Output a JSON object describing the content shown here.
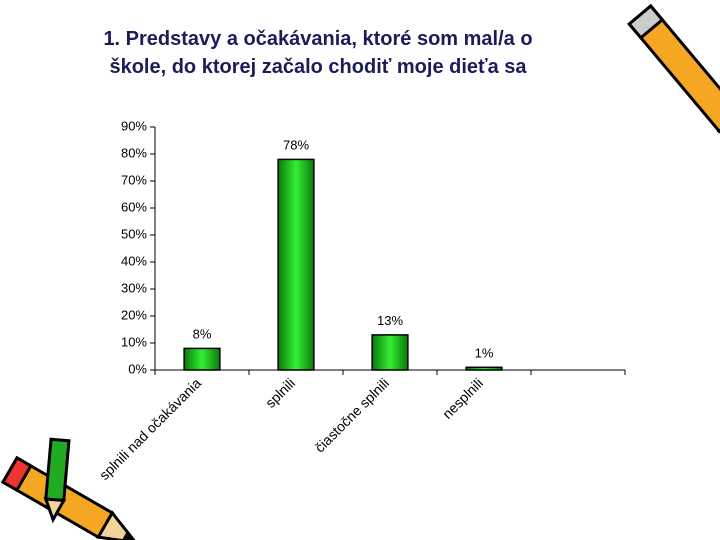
{
  "chart_data": {
    "type": "bar",
    "title": [
      "1. Predstavy a očakávania, ktoré som mal/a o",
      "škole, do ktorej začalo chodiť moje dieťa sa"
    ],
    "categories": [
      "splnili nad očakávania",
      "splnili",
      "čiastočne splnili",
      "nesplnili"
    ],
    "values": [
      8,
      78,
      13,
      1
    ],
    "value_labels": [
      "8%",
      "78%",
      "13%",
      "1%"
    ],
    "color": "#22cc22",
    "ylim": [
      0,
      90
    ],
    "yticks": [
      {
        "value": 0,
        "label": "0%"
      },
      {
        "value": 10,
        "label": "10%"
      },
      {
        "value": 20,
        "label": "20%"
      },
      {
        "value": 30,
        "label": "30%"
      },
      {
        "value": 40,
        "label": "40%"
      },
      {
        "value": 50,
        "label": "50%"
      },
      {
        "value": 60,
        "label": "60%"
      },
      {
        "value": 70,
        "label": "70%"
      },
      {
        "value": 80,
        "label": "80%"
      },
      {
        "value": 90,
        "label": "90%"
      }
    ]
  }
}
